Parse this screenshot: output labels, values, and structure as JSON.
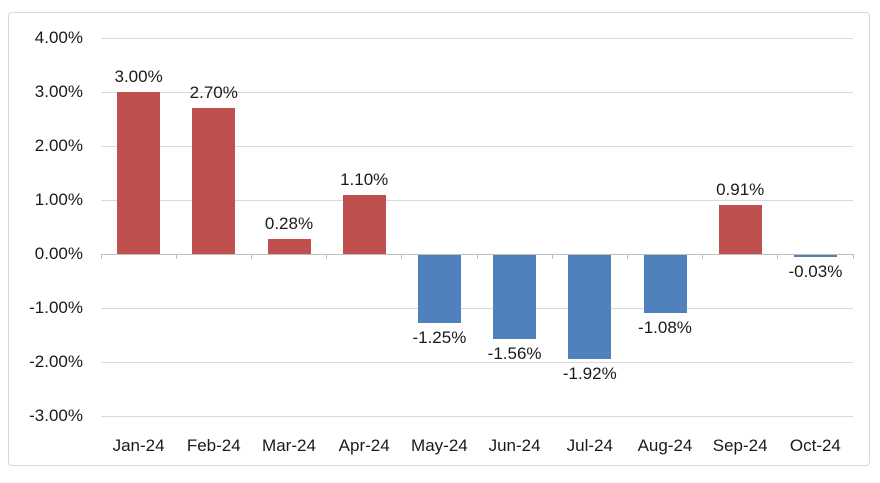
{
  "chart_data": {
    "type": "bar",
    "title": "",
    "xlabel": "",
    "ylabel": "",
    "categories": [
      "Jan-24",
      "Feb-24",
      "Mar-24",
      "Apr-24",
      "May-24",
      "Jun-24",
      "Jul-24",
      "Aug-24",
      "Sep-24",
      "Oct-24"
    ],
    "values": [
      3.0,
      2.7,
      0.28,
      1.1,
      -1.25,
      -1.56,
      -1.92,
      -1.08,
      0.91,
      -0.03
    ],
    "bar_labels": [
      "3.00%",
      "2.70%",
      "0.28%",
      "1.10%",
      "-1.25%",
      "-1.56%",
      "-1.92%",
      "-1.08%",
      "0.91%",
      "-0.03%"
    ],
    "ylim": [
      -3,
      4
    ],
    "ytick_step": 1,
    "ytick_labels": [
      "4.00%",
      "3.00%",
      "2.00%",
      "1.00%",
      "0.00%",
      "-1.00%",
      "-2.00%",
      "-3.00%"
    ],
    "grid": true,
    "legend_position": "none",
    "colors": {
      "positive_bar": "#c0504d",
      "negative_bar": "#4f81bd",
      "gridline": "#d9d9d9",
      "zero_axis_line": "#bfbfbf",
      "tick_mark": "#bfbfbf",
      "text": "#1a1a1a",
      "frame_border": "#d9d9d9",
      "background": "#ffffff"
    }
  }
}
